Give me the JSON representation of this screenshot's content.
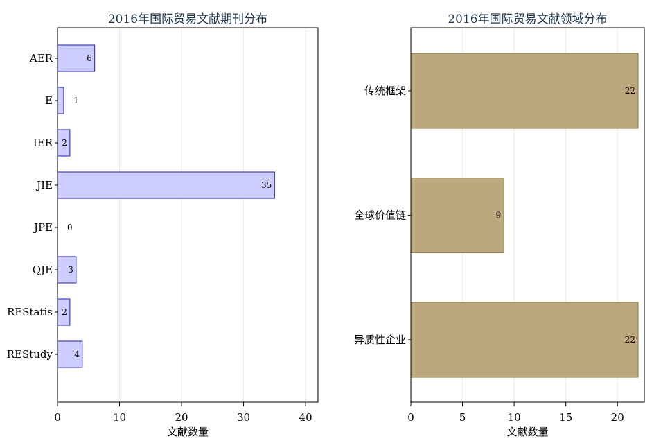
{
  "chart_data": [
    {
      "type": "bar",
      "orientation": "horizontal",
      "title": "2016年国际贸易文献期刊分布",
      "xlabel": "文献数量",
      "ylabel": "",
      "categories": [
        "AER",
        "E",
        "IER",
        "JIE",
        "JPE",
        "QJE",
        "REStatis",
        "REStudy"
      ],
      "values": [
        6,
        1,
        2,
        35,
        0,
        3,
        2,
        4
      ],
      "xlim": [
        0,
        42
      ],
      "xticks": [
        0,
        10,
        20,
        30,
        40
      ],
      "grid": true,
      "bar_fill": "#ccccff",
      "bar_stroke": "#1a1acc"
    },
    {
      "type": "bar",
      "orientation": "horizontal",
      "title": "2016年国际贸易文献领域分布",
      "xlabel": "文献数量",
      "ylabel": "",
      "categories": [
        "传统框架",
        "全球价值链",
        "异质性企业"
      ],
      "values": [
        22,
        9,
        22
      ],
      "xlim": [
        0,
        22.6
      ],
      "xticks": [
        0,
        5,
        10,
        15,
        20
      ],
      "grid": true,
      "bar_fill": "#bba97d",
      "bar_stroke": "#8a7a45"
    }
  ]
}
